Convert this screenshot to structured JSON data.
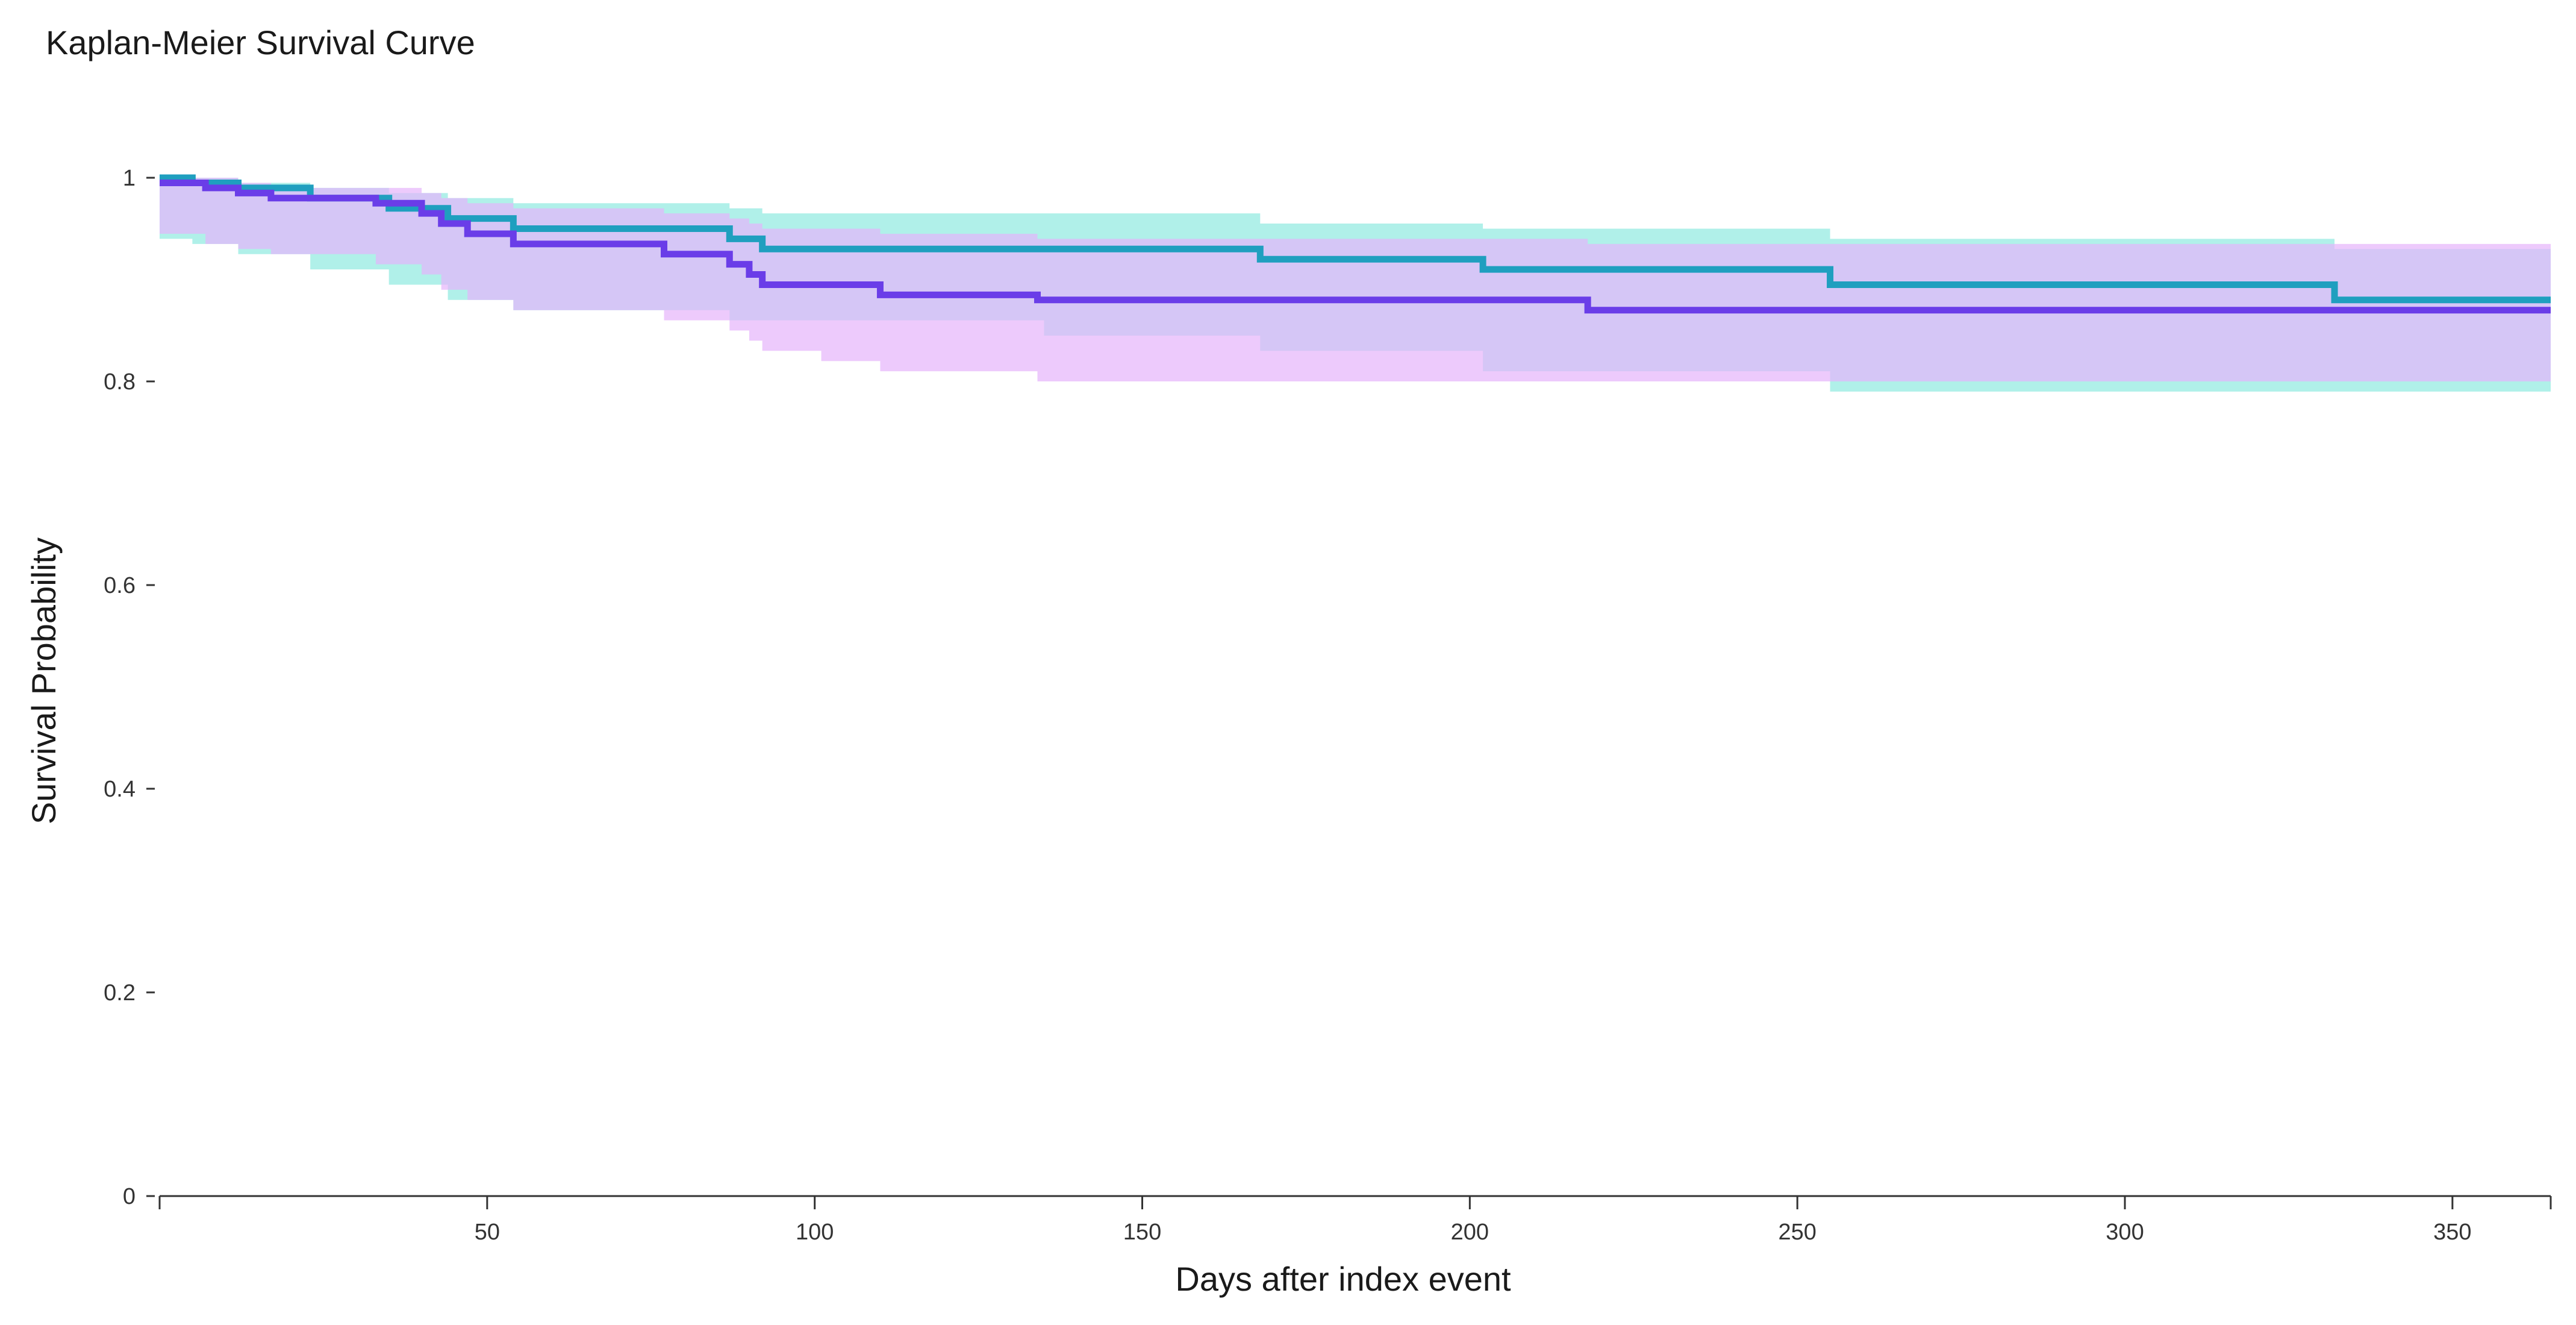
{
  "chart_data": {
    "type": "line",
    "subtype": "step",
    "title": "Kaplan-Meier Survival Curve",
    "xlabel": "Days after index event",
    "ylabel": "Survival Probability",
    "xlim": [
      0,
      365
    ],
    "ylim": [
      0,
      1
    ],
    "xticks": [
      50,
      100,
      150,
      200,
      250,
      300,
      350
    ],
    "yticks": [
      0,
      0.2,
      0.4,
      0.6,
      0.8,
      1
    ],
    "ytick_labels": [
      "0",
      "0.2",
      "0.4",
      "0.6",
      "0.8",
      "1"
    ],
    "grid": false,
    "legend": "none",
    "series": [
      {
        "color": "#1f9fbf",
        "band_color": "#8fe9e0",
        "x": [
          0,
          5,
          12,
          23,
          35,
          44,
          54,
          87,
          92,
          135,
          168,
          202,
          255,
          332,
          365
        ],
        "y": [
          1.0,
          0.995,
          0.99,
          0.98,
          0.97,
          0.96,
          0.95,
          0.94,
          0.93,
          0.93,
          0.92,
          0.91,
          0.895,
          0.88,
          0.88
        ],
        "lower": [
          1.0,
          0.94,
          0.935,
          0.925,
          0.91,
          0.895,
          0.88,
          0.87,
          0.86,
          0.86,
          0.845,
          0.83,
          0.81,
          0.79,
          0.79
        ],
        "upper": [
          1.0,
          1.0,
          0.995,
          0.99,
          0.985,
          0.98,
          0.975,
          0.97,
          0.965,
          0.965,
          0.955,
          0.95,
          0.94,
          0.93,
          0.93
        ]
      },
      {
        "color": "#6a3de8",
        "band_color": "#e6b3fb",
        "x": [
          0,
          7,
          12,
          17,
          33,
          40,
          43,
          47,
          54,
          77,
          87,
          90,
          92,
          94,
          101,
          110,
          134,
          218,
          365
        ],
        "y": [
          0.995,
          0.99,
          0.985,
          0.98,
          0.975,
          0.965,
          0.955,
          0.945,
          0.935,
          0.925,
          0.915,
          0.905,
          0.895,
          0.895,
          0.895,
          0.885,
          0.88,
          0.87,
          0.87
        ],
        "lower": [
          0.955,
          0.945,
          0.935,
          0.93,
          0.925,
          0.915,
          0.905,
          0.89,
          0.88,
          0.87,
          0.86,
          0.85,
          0.84,
          0.83,
          0.83,
          0.82,
          0.81,
          0.8,
          0.8
        ],
        "upper": [
          1.0,
          1.0,
          0.995,
          0.99,
          0.99,
          0.985,
          0.98,
          0.975,
          0.97,
          0.965,
          0.96,
          0.955,
          0.95,
          0.95,
          0.95,
          0.945,
          0.94,
          0.935,
          0.935
        ]
      }
    ]
  }
}
